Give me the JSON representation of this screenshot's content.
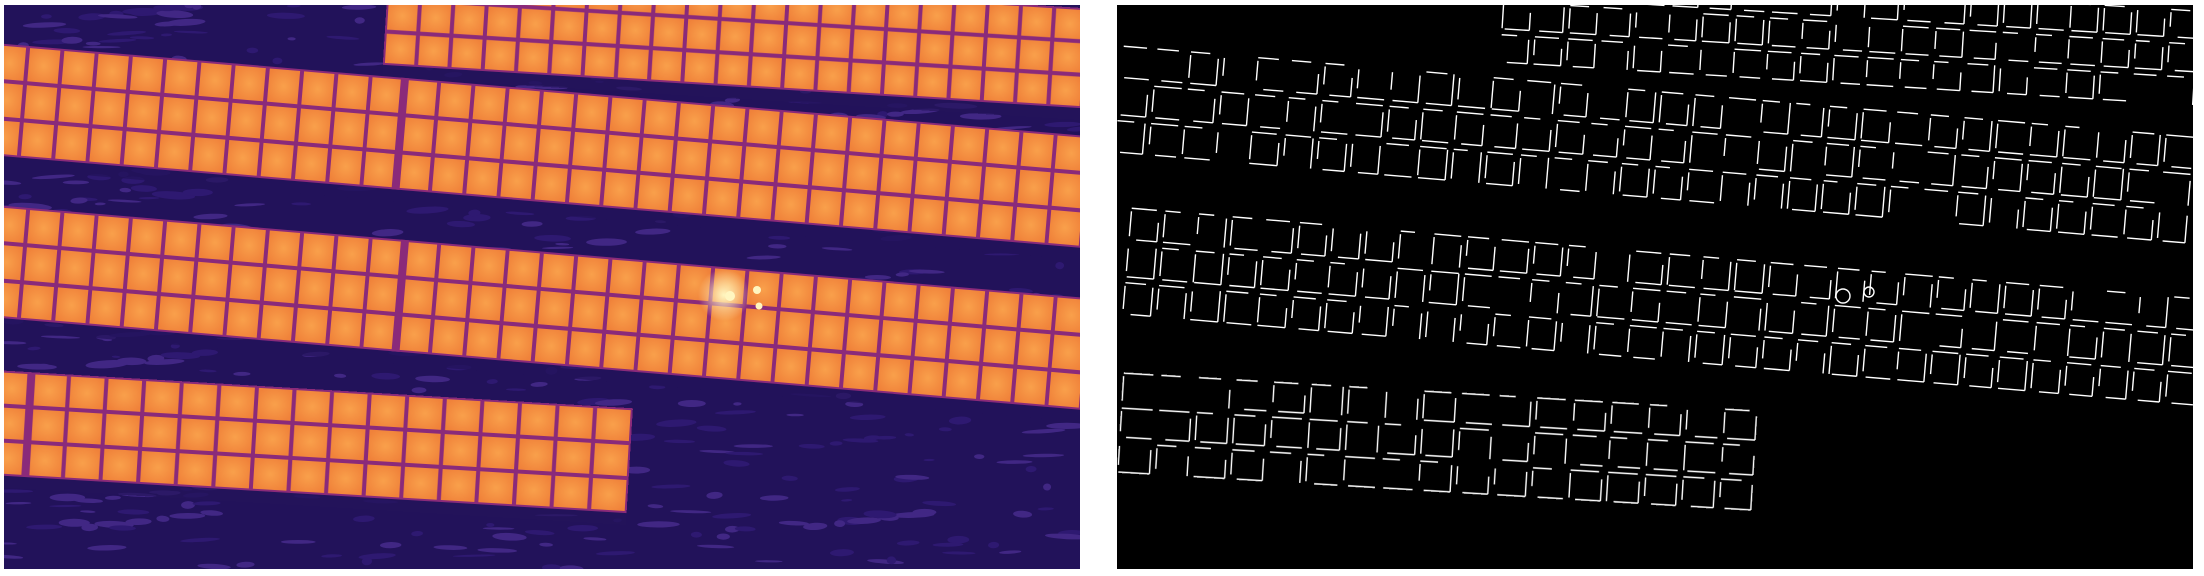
{
  "figure": {
    "panels": [
      {
        "kind": "thermal-image"
      },
      {
        "kind": "edge-detection-map"
      }
    ]
  },
  "colors": {
    "background_page": "#ffffff",
    "ground_dark": "#22125a",
    "ground_mid": "#3a1f85",
    "ground_light": "#5b3aa8",
    "panel_cell": "#f0823a",
    "panel_cell_center": "#f9a04b",
    "panel_grid": "#8a2a7a",
    "hotspot": "#fff6c0",
    "edge_bg": "#000000",
    "edge_line": "#ffffff"
  },
  "thermal_image": {
    "rows_of_panels": 4,
    "hotspot_present": true
  }
}
